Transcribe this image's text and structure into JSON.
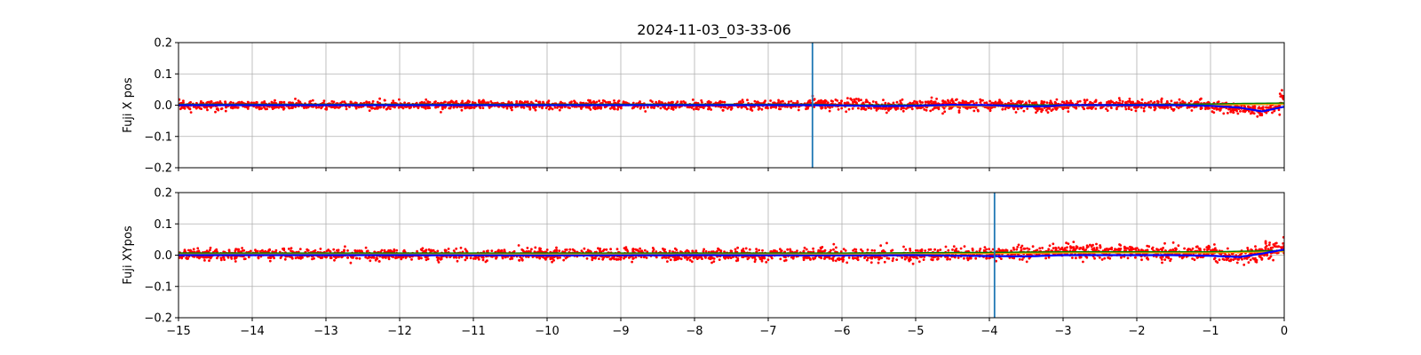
{
  "chart_data": {
    "title": "2024-11-03_03-33-06",
    "colors": {
      "scatter": "#ff0000",
      "mean_line": "#0000ff",
      "ref_line": "#008000",
      "ref_line_2": "#ffa500",
      "vline": "#1f77b4",
      "grid": "#b0b0b0"
    },
    "shared_x": {
      "xlim": [
        -15,
        0
      ],
      "ticks": [
        -15,
        -14,
        -13,
        -12,
        -11,
        -10,
        -9,
        -8,
        -7,
        -6,
        -5,
        -4,
        -3,
        -2,
        -1,
        0
      ],
      "tick_labels": [
        "−15",
        "−14",
        "−13",
        "−12",
        "−11",
        "−10",
        "−9",
        "−8",
        "−7",
        "−6",
        "−5",
        "−4",
        "−3",
        "−2",
        "−1",
        "0"
      ]
    },
    "panels": [
      {
        "type": "scatter",
        "ylabel": "Fuji X pos",
        "ylim": [
          -0.2,
          0.2
        ],
        "yticks": [
          -0.2,
          -0.1,
          0.0,
          0.1,
          0.2
        ],
        "ytick_labels": [
          "−0.2",
          "−0.1",
          "0.0",
          "0.1",
          "0.2"
        ],
        "grid": true,
        "vlines": [
          -6.4
        ],
        "scatter_band": {
          "x": [
            -15,
            -14,
            -13,
            -12,
            -11,
            -10,
            -9,
            -8,
            -7,
            -6.5,
            -6.4,
            -6,
            -5.5,
            -5,
            -4.5,
            -4,
            -3.5,
            -3.2,
            -3,
            -2.5,
            -2,
            -1.5,
            -1,
            -0.6,
            -0.3,
            -0.1,
            0
          ],
          "center": [
            0.0,
            0.0,
            0.0,
            0.0,
            0.0,
            0.0,
            0.0,
            0.0,
            0.0,
            0.0,
            0.005,
            0.002,
            -0.002,
            0.0,
            0.002,
            0.0,
            -0.003,
            -0.002,
            0.0,
            0.0,
            0.002,
            0.0,
            -0.002,
            -0.01,
            -0.018,
            -0.01,
            0.02
          ],
          "spread": [
            0.012,
            0.012,
            0.012,
            0.012,
            0.012,
            0.012,
            0.012,
            0.012,
            0.012,
            0.012,
            0.014,
            0.014,
            0.014,
            0.014,
            0.016,
            0.014,
            0.016,
            0.016,
            0.014,
            0.014,
            0.014,
            0.014,
            0.014,
            0.016,
            0.016,
            0.02,
            0.04
          ]
        },
        "mean_line": {
          "x": [
            -15,
            -10,
            -7,
            -6.4,
            -6,
            -5.5,
            -5,
            -4.5,
            -4,
            -3.5,
            -3.2,
            -3,
            -2,
            -1.5,
            -1,
            -0.6,
            -0.3,
            -0.1,
            0
          ],
          "y": [
            0.0,
            0.0,
            0.0,
            0.0,
            -0.001,
            -0.003,
            -0.002,
            0.001,
            0.0,
            -0.004,
            -0.003,
            0.0,
            0.0,
            0.0,
            -0.002,
            -0.008,
            -0.02,
            -0.01,
            -0.005
          ]
        },
        "ref_line": {
          "x": [
            -15,
            -6.4,
            -6,
            -3,
            -1,
            -0.5,
            0
          ],
          "y": [
            0.002,
            0.002,
            0.0,
            0.0,
            0.003,
            0.005,
            0.006
          ]
        }
      },
      {
        "type": "scatter",
        "ylabel": "Fuji XYpos",
        "ylim": [
          -0.2,
          0.2
        ],
        "yticks": [
          -0.2,
          -0.1,
          0.0,
          0.1,
          0.2
        ],
        "ytick_labels": [
          "−0.2",
          "−0.1",
          "0.0",
          "0.1",
          "0.2"
        ],
        "grid": true,
        "vlines": [
          -3.93
        ],
        "scatter_band": {
          "x": [
            -15,
            -14,
            -13,
            -12,
            -11,
            -10,
            -9,
            -8,
            -7,
            -6,
            -5,
            -4,
            -3.5,
            -3,
            -2.5,
            -2,
            -1.5,
            -1,
            -0.6,
            -0.4,
            -0.2,
            0
          ],
          "center": [
            0.002,
            0.003,
            0.003,
            0.002,
            0.002,
            0.002,
            0.002,
            0.0,
            0.002,
            0.0,
            0.002,
            0.003,
            0.008,
            0.012,
            0.012,
            0.01,
            0.01,
            0.006,
            -0.005,
            0.005,
            0.015,
            0.025
          ],
          "spread": [
            0.016,
            0.016,
            0.016,
            0.016,
            0.016,
            0.016,
            0.016,
            0.016,
            0.016,
            0.018,
            0.018,
            0.018,
            0.018,
            0.02,
            0.02,
            0.02,
            0.02,
            0.02,
            0.024,
            0.024,
            0.026,
            0.028
          ]
        },
        "mean_line": {
          "x": [
            -15,
            -12,
            -10,
            -8,
            -6,
            -5,
            -4,
            -3.5,
            -3,
            -2,
            -1.5,
            -1,
            -0.6,
            -0.3,
            0
          ],
          "y": [
            0.0,
            0.0,
            -0.001,
            0.0,
            -0.001,
            0.0,
            -0.003,
            -0.004,
            0.0,
            0.0,
            0.0,
            -0.002,
            -0.006,
            0.005,
            0.018
          ]
        },
        "ref_line": {
          "x": [
            -15,
            -10,
            -6,
            -4,
            -3,
            -2,
            -1,
            -0.5,
            0
          ],
          "y": [
            0.006,
            0.006,
            0.006,
            0.008,
            0.01,
            0.01,
            0.01,
            0.012,
            0.014
          ]
        }
      }
    ]
  }
}
